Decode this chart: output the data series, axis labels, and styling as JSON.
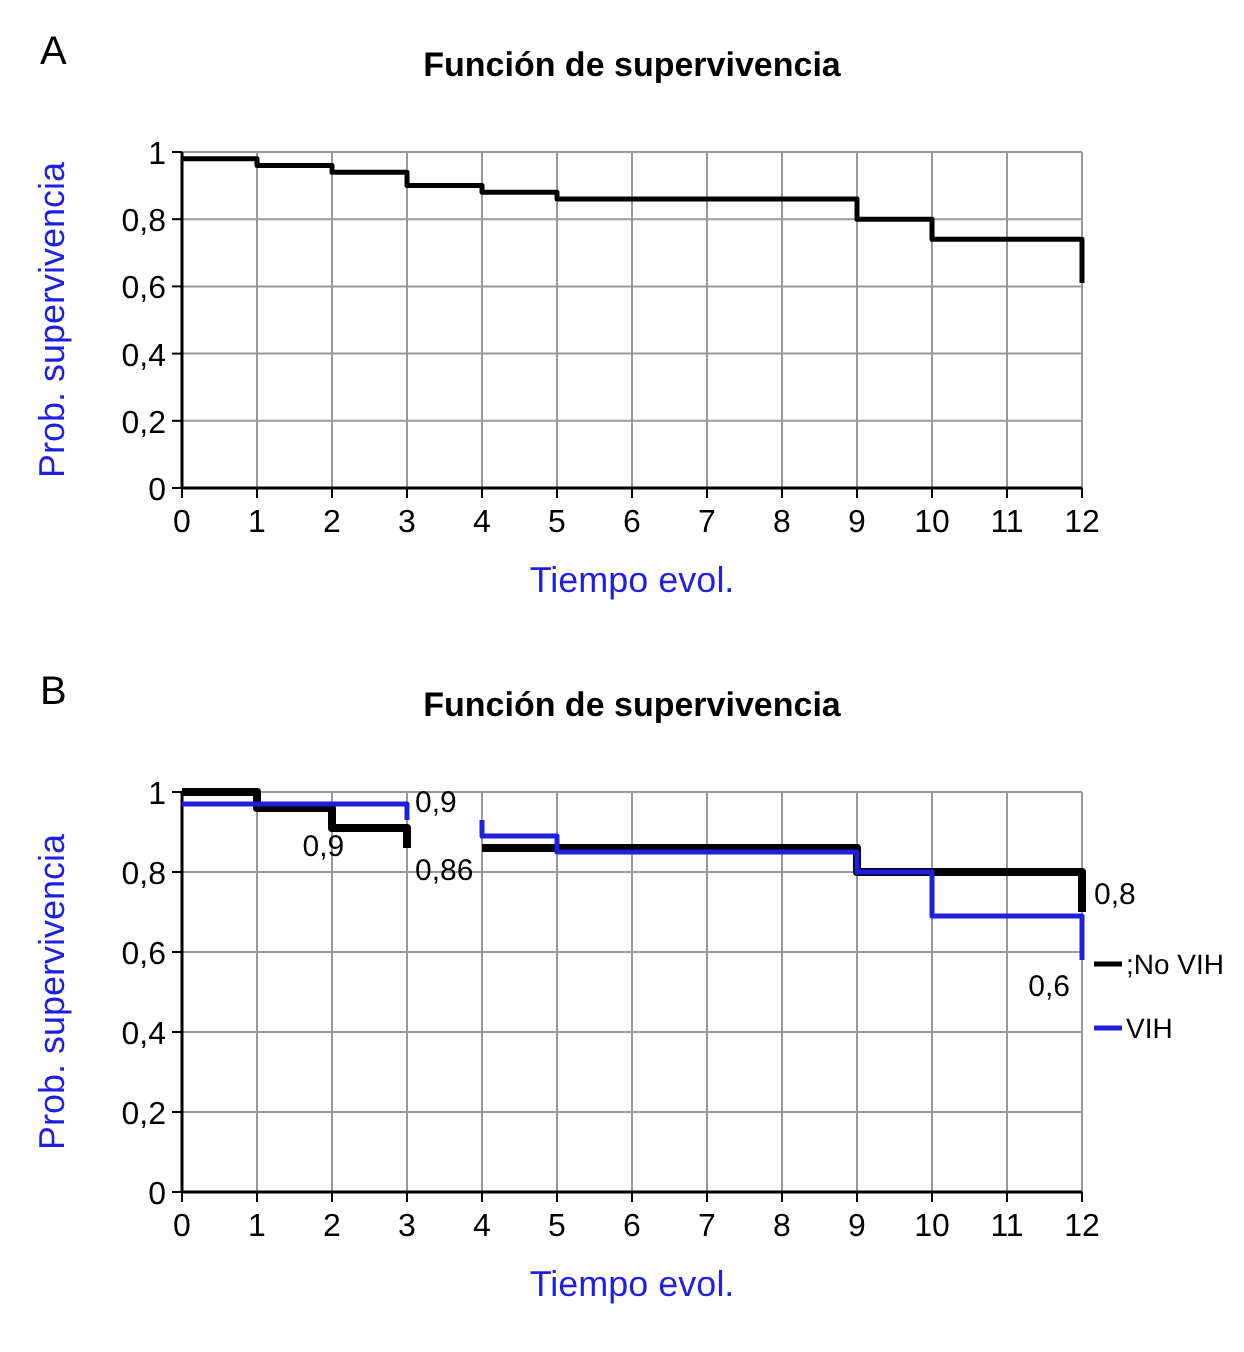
{
  "chart_data": [
    {
      "type": "step",
      "title": "Función de supervivencia",
      "xlabel": "Tiempo evol.",
      "ylabel": "Prob. supervivencia",
      "annotations": [
        "A"
      ],
      "series": [
        {
          "color": "#000000",
          "x": [
            0,
            1,
            2,
            3,
            4,
            5,
            9,
            10,
            12,
            12
          ],
          "values": [
            0.98,
            0.96,
            0.94,
            0.9,
            0.88,
            0.86,
            0.8,
            0.74,
            0.74,
            0.61
          ]
        }
      ],
      "xlim": [
        0,
        12
      ],
      "xticks": [
        {
          "value": 0,
          "label": "0"
        },
        1,
        2,
        3,
        4,
        5,
        6,
        7,
        8,
        9,
        10,
        11,
        12
      ],
      "ylim": [
        0,
        1
      ],
      "yticks": [
        {
          "value": 0,
          "label": "0"
        },
        {
          "value": 0.2,
          "label": "0,2"
        },
        {
          "value": 0.4,
          "label": "0,4"
        },
        {
          "value": 0.6,
          "label": "0,6"
        },
        {
          "value": 0.8,
          "label": "0,8"
        },
        1
      ],
      "grid": true,
      "legend": false
    },
    {
      "type": "step",
      "title": "Función de supervivencia",
      "xlabel": "Tiempo evol.",
      "ylabel": "Prob. supervivencia",
      "annotations": [
        "B",
        {
          "text": "0,9",
          "x": 1.5,
          "y": 0.96
        },
        {
          "text": "0,9",
          "x": 3,
          "y": 0.93
        },
        {
          "text": "0,86",
          "x": 3,
          "y": 0.86
        },
        {
          "text": "0,8",
          "x": 12,
          "y": 0.8
        },
        {
          "text": "0,6",
          "x": 12,
          "y": 0.58
        }
      ],
      "series": [
        {
          "name": ";No VIH",
          "color": "#000000",
          "x": [
            0,
            1,
            2,
            3,
            null,
            4,
            9,
            12,
            12
          ],
          "values": [
            1,
            0.96,
            0.91,
            0.86,
            null,
            0.86,
            0.8,
            0.8,
            0.7
          ]
        },
        {
          "name": "VIH",
          "color": "#1f1fe0",
          "x": [
            0,
            3,
            null,
            4,
            4,
            5,
            9,
            10,
            12,
            12
          ],
          "values": [
            0.97,
            0.93,
            null,
            0.93,
            0.89,
            0.85,
            0.8,
            0.69,
            0.69,
            0.58
          ]
        }
      ],
      "xlim": [
        0,
        12
      ],
      "xticks": [
        {
          "value": 0,
          "label": "0"
        },
        1,
        2,
        3,
        4,
        5,
        6,
        7,
        8,
        9,
        10,
        11,
        12
      ],
      "ylim": [
        0,
        1
      ],
      "yticks": [
        {
          "value": 0,
          "label": "0"
        },
        {
          "value": 0.2,
          "label": "0,2"
        },
        {
          "value": 0.4,
          "label": "0,4"
        },
        {
          "value": 0.6,
          "label": "0,6"
        },
        {
          "value": 0.8,
          "label": "0,8"
        },
        1
      ],
      "grid": true,
      "legend": "right"
    }
  ]
}
